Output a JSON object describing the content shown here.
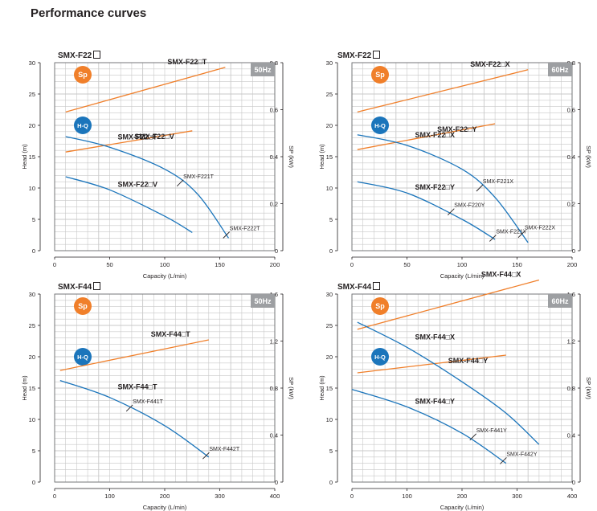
{
  "page_title": "Performance curves",
  "chart_data": [
    {
      "type": "line",
      "title": "SMX-F22",
      "frequency": "50Hz",
      "xlabel": "Capacity (L/min)",
      "ylabel": "Head (m)",
      "y2label": "SP (kW)",
      "xlim": [
        0,
        200
      ],
      "ylim": [
        0,
        30
      ],
      "y2lim": [
        0,
        0.8
      ],
      "xticks": [
        "0",
        "50",
        "100",
        "150",
        "200"
      ],
      "yticks": [
        "0",
        "5",
        "10",
        "15",
        "20",
        "25",
        "30"
      ],
      "y2ticks": [
        "0",
        "0.2",
        "0.4",
        "0.6",
        "0.8"
      ],
      "grid": true,
      "badges": [
        "Sp",
        "H-Q"
      ],
      "power_series": [
        {
          "name": "SMX-F22□T",
          "x": [
            10,
            155
          ],
          "y": [
            0.59,
            0.78
          ]
        },
        {
          "name": "SMX-F22□V",
          "x": [
            10,
            125
          ],
          "y": [
            0.42,
            0.51
          ]
        }
      ],
      "head_series": [
        {
          "name": "SMX-F22□T",
          "x": [
            10,
            50,
            100,
            130,
            158
          ],
          "y": [
            18.2,
            16.5,
            13.0,
            9.0,
            2.0
          ]
        },
        {
          "name": "SMX-F22□V",
          "x": [
            10,
            50,
            100,
            125
          ],
          "y": [
            11.8,
            9.7,
            5.5,
            2.9
          ]
        }
      ],
      "annotations": [
        {
          "text": "SMX-F221T",
          "x": 114,
          "y": 10.8
        },
        {
          "text": "SMX-F222T",
          "x": 156,
          "y": 2.5
        }
      ]
    },
    {
      "type": "line",
      "title": "SMX-F22",
      "frequency": "60Hz",
      "xlabel": "Capacity (L/min)",
      "ylabel": "Head (m)",
      "y2label": "SP (kW)",
      "xlim": [
        0,
        200
      ],
      "ylim": [
        0,
        30
      ],
      "y2lim": [
        0,
        0.8
      ],
      "xticks": [
        "0",
        "50",
        "100",
        "150",
        "200"
      ],
      "yticks": [
        "0",
        "5",
        "10",
        "15",
        "20",
        "25",
        "30"
      ],
      "y2ticks": [
        "0",
        "0.2",
        "0.4",
        "0.6",
        "0.8"
      ],
      "grid": true,
      "badges": [
        "Sp",
        "H-Q"
      ],
      "power_series": [
        {
          "name": "SMX-F22□X",
          "x": [
            5,
            160
          ],
          "y": [
            0.59,
            0.77
          ]
        },
        {
          "name": "SMX-F22□Y",
          "x": [
            5,
            130
          ],
          "y": [
            0.43,
            0.54
          ]
        }
      ],
      "head_series": [
        {
          "name": "SMX-F22□X",
          "x": [
            5,
            50,
            100,
            130,
            160
          ],
          "y": [
            18.5,
            16.8,
            13.0,
            8.5,
            1.3
          ]
        },
        {
          "name": "SMX-F22□Y",
          "x": [
            5,
            50,
            100,
            130
          ],
          "y": [
            11.0,
            9.2,
            5.0,
            1.8
          ]
        }
      ],
      "annotations": [
        {
          "text": "SMX-F221X",
          "x": 116,
          "y": 10.0
        },
        {
          "text": "SMX-F220Y",
          "x": 90,
          "y": 6.2
        },
        {
          "text": "SMX-F221Y",
          "x": 128,
          "y": 2.0
        },
        {
          "text": "SMX-F222X",
          "x": 154,
          "y": 2.6
        }
      ]
    },
    {
      "type": "line",
      "title": "SMX-F44",
      "frequency": "50Hz",
      "xlabel": "Capacity (L/min)",
      "ylabel": "Head (m)",
      "y2label": "SP (kW)",
      "xlim": [
        0,
        400
      ],
      "ylim": [
        0,
        30
      ],
      "y2lim": [
        0,
        1.6
      ],
      "xticks": [
        "0",
        "100",
        "200",
        "300",
        "400"
      ],
      "yticks": [
        "0",
        "5",
        "10",
        "15",
        "20",
        "25",
        "30"
      ],
      "y2ticks": [
        "0",
        "0.4",
        "0.8",
        "1.2",
        "1.6"
      ],
      "grid": true,
      "badges": [
        "Sp",
        "H-Q"
      ],
      "power_series": [
        {
          "name": "SMX-F44□T",
          "x": [
            10,
            280
          ],
          "y": [
            0.95,
            1.21
          ]
        }
      ],
      "head_series": [
        {
          "name": "SMX-F44□T",
          "x": [
            10,
            100,
            200,
            280
          ],
          "y": [
            16.2,
            13.5,
            9.0,
            4.0
          ]
        }
      ],
      "annotations": [
        {
          "text": "SMX-F441T",
          "x": 136,
          "y": 11.8
        },
        {
          "text": "SMX-F442T",
          "x": 275,
          "y": 4.2
        }
      ]
    },
    {
      "type": "line",
      "title": "SMX-F44",
      "frequency": "60Hz",
      "xlabel": "Capacity (L/min)",
      "ylabel": "Head (m)",
      "y2label": "SP (kW)",
      "xlim": [
        0,
        400
      ],
      "ylim": [
        0,
        30
      ],
      "y2lim": [
        0,
        1.6
      ],
      "xticks": [
        "0",
        "100",
        "200",
        "300",
        "400"
      ],
      "yticks": [
        "0",
        "5",
        "10",
        "15",
        "20",
        "25",
        "30"
      ],
      "y2ticks": [
        "0",
        "0.4",
        "0.8",
        "1.2",
        "1.6"
      ],
      "grid": true,
      "badges": [
        "Sp",
        "H-Q"
      ],
      "power_series": [
        {
          "name": "SMX-F44□X",
          "x": [
            10,
            340
          ],
          "y": [
            1.3,
            1.72
          ]
        },
        {
          "name": "SMX-F44□Y",
          "x": [
            10,
            280
          ],
          "y": [
            0.93,
            1.08
          ]
        }
      ],
      "head_series": [
        {
          "name": "SMX-F44□X",
          "x": [
            10,
            100,
            200,
            280,
            340
          ],
          "y": [
            25.5,
            21.5,
            16.0,
            11.0,
            6.0
          ]
        },
        {
          "name": "SMX-F44□Y",
          "x": [
            0,
            100,
            200,
            280
          ],
          "y": [
            14.8,
            12.0,
            7.8,
            3.0
          ]
        }
      ],
      "annotations": [
        {
          "text": "SMX-F441Y",
          "x": 220,
          "y": 7.2
        },
        {
          "text": "SMX-F442Y",
          "x": 275,
          "y": 3.4
        }
      ]
    }
  ],
  "colors": {
    "head_line": "#1b75bb",
    "power_line": "#f07f2a",
    "badge_sp": "#f07f2a",
    "badge_hq": "#1b75bb",
    "freq_badge": "#9d9fa2",
    "grid": "#c8c8c8"
  }
}
